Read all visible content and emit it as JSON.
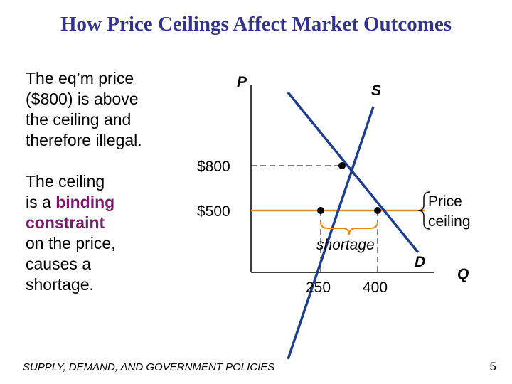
{
  "slide": {
    "title": "How Price Ceilings Affect Market Outcomes",
    "footer": "SUPPLY, DEMAND, AND GOVERNMENT POLICIES",
    "page_number": "5"
  },
  "left_text": {
    "para1": [
      "The eq’m price",
      "($800) is above",
      "the ceiling and",
      "therefore illegal."
    ],
    "para2_line1": "The ceiling",
    "para2_line2_prefix": "is a ",
    "para2_line2_highlight": "binding",
    "para2_line3_highlight": "constraint",
    "para2_rest": [
      "on the price,",
      "causes a",
      "shortage."
    ]
  },
  "diagram": {
    "p_axis_label": "P",
    "q_axis_label": "Q",
    "supply_label": "S",
    "demand_label": "D",
    "equilibrium_price_label": "$800",
    "ceiling_price_label": "$500",
    "quantity_demanded_label": "400",
    "quantity_supplied_label": "250",
    "ceiling_label_line1": "Price",
    "ceiling_label_line2": "ceiling",
    "shortage_label": "shortage",
    "equilibrium_price": 800,
    "ceiling_price": 500,
    "quantity_supplied": 250,
    "quantity_demanded": 400,
    "colors": {
      "curves": "#1f3f8a",
      "ceiling": "#e08a1e",
      "title": "#33338a",
      "highlight": "#7a1a6c"
    }
  }
}
